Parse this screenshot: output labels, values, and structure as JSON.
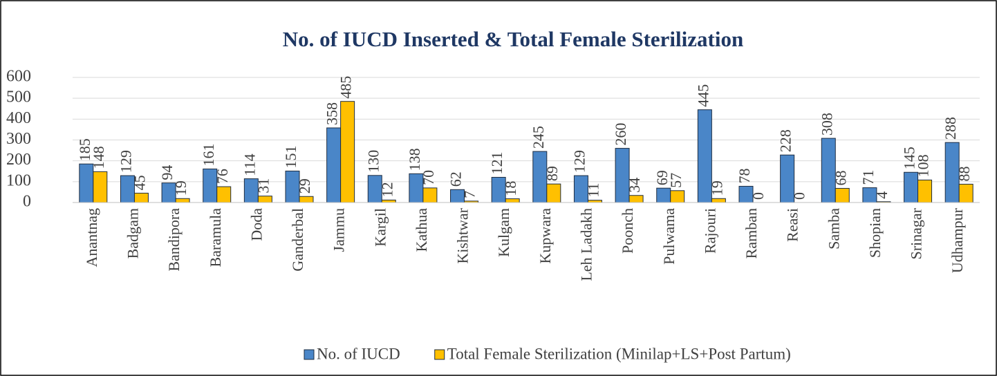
{
  "chart_data": {
    "type": "bar",
    "title": "No. of IUCD Inserted & Total Female Sterilization",
    "categories": [
      "Anantnag",
      "Badgam",
      "Bandipora",
      "Baramula",
      "Doda",
      "Ganderbal",
      "Jammu",
      "Kargil",
      "Kathua",
      "Kishtwar",
      "Kulgam",
      "Kupwara",
      "Leh Ladakh",
      "Poonch",
      "Pulwama",
      "Rajouri",
      "Ramban",
      "Reasi",
      "Samba",
      "Shopian",
      "Srinagar",
      "Udhampur"
    ],
    "series": [
      {
        "name": "No. of IUCD",
        "color": "#4a86c8",
        "values": [
          185,
          129,
          94,
          161,
          114,
          151,
          358,
          130,
          138,
          62,
          121,
          245,
          129,
          260,
          69,
          445,
          78,
          228,
          308,
          71,
          145,
          288
        ]
      },
      {
        "name": "Total Female Sterilization (Minilap+LS+Post Partum)",
        "color": "#ffc000",
        "values": [
          148,
          45,
          19,
          76,
          31,
          29,
          485,
          12,
          70,
          7,
          18,
          89,
          11,
          34,
          57,
          19,
          0,
          0,
          68,
          4,
          108,
          88
        ]
      }
    ],
    "ylim": [
      0,
      600
    ],
    "yticks": [
      0,
      100,
      200,
      300,
      400,
      500,
      600
    ],
    "grid": true
  }
}
